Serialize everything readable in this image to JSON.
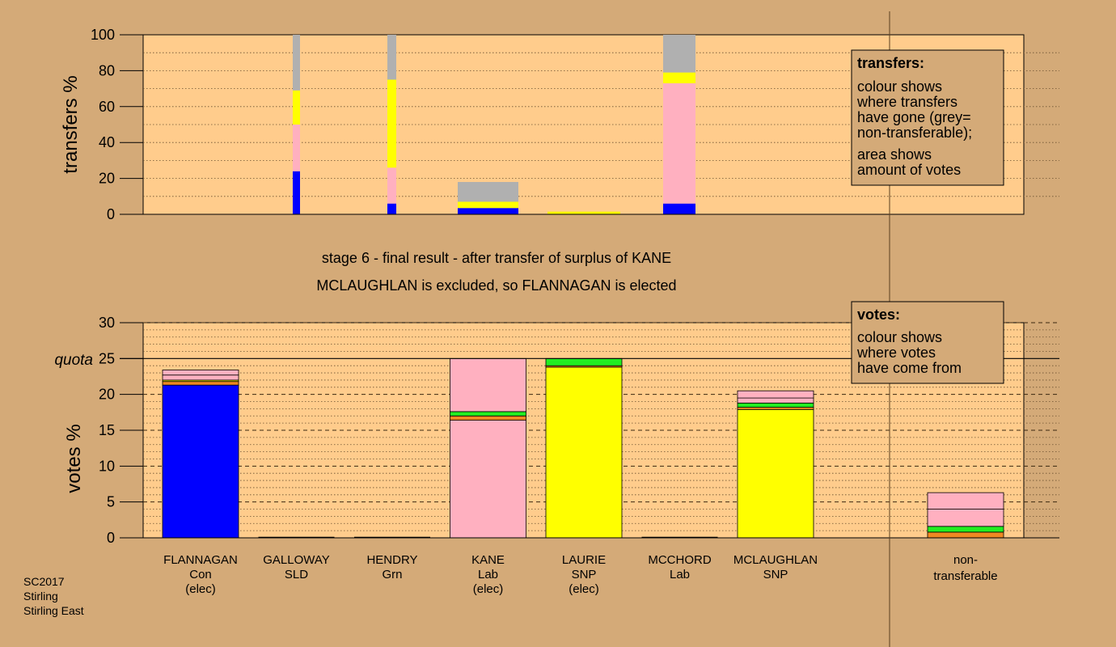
{
  "colors": {
    "background": "#d4aa78",
    "plot_bg": "#ffcc8c",
    "Con": "#0000ff",
    "SNP": "#ffff00",
    "Lab": "#ffb0c0",
    "Grn": "#22ee22",
    "SLD": "#ee8822",
    "nontransferable": "#b0b0b0"
  },
  "footer": {
    "line1": "SC2017",
    "line2": "Stirling",
    "line3": "Stirling East"
  },
  "headline": {
    "line1": "stage 6 - final result - after transfer of surplus of KANE",
    "line2": "MCLAUGHLAN is excluded, so FLANNAGAN is elected"
  },
  "transfers_legend": {
    "title": "transfers:",
    "lines": [
      "colour shows",
      "where transfers",
      "have gone (grey=",
      "non-transferable);",
      "area shows",
      "amount of votes"
    ]
  },
  "votes_legend": {
    "title": "votes:",
    "lines": [
      "colour shows",
      "where votes",
      "have come from"
    ]
  },
  "chart_data": [
    {
      "type": "bar",
      "title": "transfers",
      "ylabel": "transfers %",
      "ylim": [
        0,
        100
      ],
      "yticks": [
        "0",
        "20",
        "40",
        "60",
        "80",
        "100"
      ],
      "grid": "dotted",
      "columns": [
        {
          "candidate": "GALLOWAY",
          "width": "narrow",
          "segments": [
            {
              "party": "Con",
              "from": 0,
              "to": 24
            },
            {
              "party": "Lab",
              "from": 24,
              "to": 50
            },
            {
              "party": "SNP",
              "from": 50,
              "to": 69
            },
            {
              "party": "nontransferable",
              "from": 69,
              "to": 100
            }
          ]
        },
        {
          "candidate": "HENDRY",
          "width": "narrow",
          "segments": [
            {
              "party": "Con",
              "from": 0,
              "to": 6
            },
            {
              "party": "Lab",
              "from": 6,
              "to": 26
            },
            {
              "party": "SNP",
              "from": 26,
              "to": 75
            },
            {
              "party": "nontransferable",
              "from": 75,
              "to": 100
            }
          ]
        },
        {
          "candidate": "KANE",
          "width": "wide",
          "segments": [
            {
              "party": "Con",
              "from": 0,
              "to": 3.5
            },
            {
              "party": "SNP",
              "from": 3.5,
              "to": 7
            },
            {
              "party": "nontransferable",
              "from": 7,
              "to": 18
            }
          ]
        },
        {
          "candidate": "LAURIE",
          "width": "wide",
          "segments": [
            {
              "party": "SNP",
              "from": 0,
              "to": 1.5
            }
          ]
        },
        {
          "candidate": "MCLAUGHLAN",
          "width": "medium",
          "segments": [
            {
              "party": "Con",
              "from": 0,
              "to": 6
            },
            {
              "party": "Lab",
              "from": 6,
              "to": 73
            },
            {
              "party": "SNP",
              "from": 73,
              "to": 79
            },
            {
              "party": "nontransferable",
              "from": 79,
              "to": 100
            }
          ]
        }
      ]
    },
    {
      "type": "bar",
      "title": "votes",
      "ylabel": "votes %",
      "ylim": [
        0,
        30
      ],
      "yticks": [
        "0",
        "5",
        "10",
        "15",
        "20",
        "25",
        "30"
      ],
      "quota": 25,
      "quota_label": "quota",
      "grid": "dotted",
      "candidates": [
        {
          "name": "FLANNAGAN",
          "party": "Con",
          "status": "(elec)",
          "segments": [
            {
              "party": "Con",
              "from": 0,
              "to": 21.3
            },
            {
              "party": "SLD",
              "from": 21.3,
              "to": 21.8
            },
            {
              "party": "SNP",
              "from": 21.8,
              "to": 22.0
            },
            {
              "party": "Lab",
              "from": 22.0,
              "to": 22.7
            },
            {
              "party": "Lab",
              "from": 22.7,
              "to": 23.4
            }
          ]
        },
        {
          "name": "GALLOWAY",
          "party": "SLD",
          "status": "",
          "segments": []
        },
        {
          "name": "HENDRY",
          "party": "Grn",
          "status": "",
          "segments": []
        },
        {
          "name": "KANE",
          "party": "Lab",
          "status": "(elec)",
          "segments": [
            {
              "party": "Lab",
              "from": 0,
              "to": 16.4
            },
            {
              "party": "SLD",
              "from": 16.4,
              "to": 17.0
            },
            {
              "party": "Grn",
              "from": 17.0,
              "to": 17.6
            },
            {
              "party": "Lab",
              "from": 17.6,
              "to": 25
            }
          ]
        },
        {
          "name": "LAURIE",
          "party": "SNP",
          "status": "(elec)",
          "segments": [
            {
              "party": "SNP",
              "from": 0,
              "to": 23.8
            },
            {
              "party": "SLD",
              "from": 23.8,
              "to": 24.0
            },
            {
              "party": "Grn",
              "from": 24.0,
              "to": 25
            }
          ]
        },
        {
          "name": "MCCHORD",
          "party": "Lab",
          "status": "",
          "segments": []
        },
        {
          "name": "MCLAUGHLAN",
          "party": "SNP",
          "status": "",
          "segments": [
            {
              "party": "SNP",
              "from": 0,
              "to": 17.9
            },
            {
              "party": "SLD",
              "from": 17.9,
              "to": 18.2
            },
            {
              "party": "Grn",
              "from": 18.2,
              "to": 18.8
            },
            {
              "party": "Lab",
              "from": 18.8,
              "to": 19.5
            },
            {
              "party": "Lab",
              "from": 19.5,
              "to": 20.5
            }
          ]
        }
      ],
      "nontransferable": {
        "label1": "non-",
        "label2": "transferable",
        "segments": [
          {
            "party": "SLD",
            "from": 0,
            "to": 0.8
          },
          {
            "party": "Grn",
            "from": 0.8,
            "to": 1.6
          },
          {
            "party": "Lab",
            "from": 1.6,
            "to": 4.0
          },
          {
            "party": "Lab",
            "from": 4.0,
            "to": 6.3
          }
        ]
      }
    }
  ]
}
